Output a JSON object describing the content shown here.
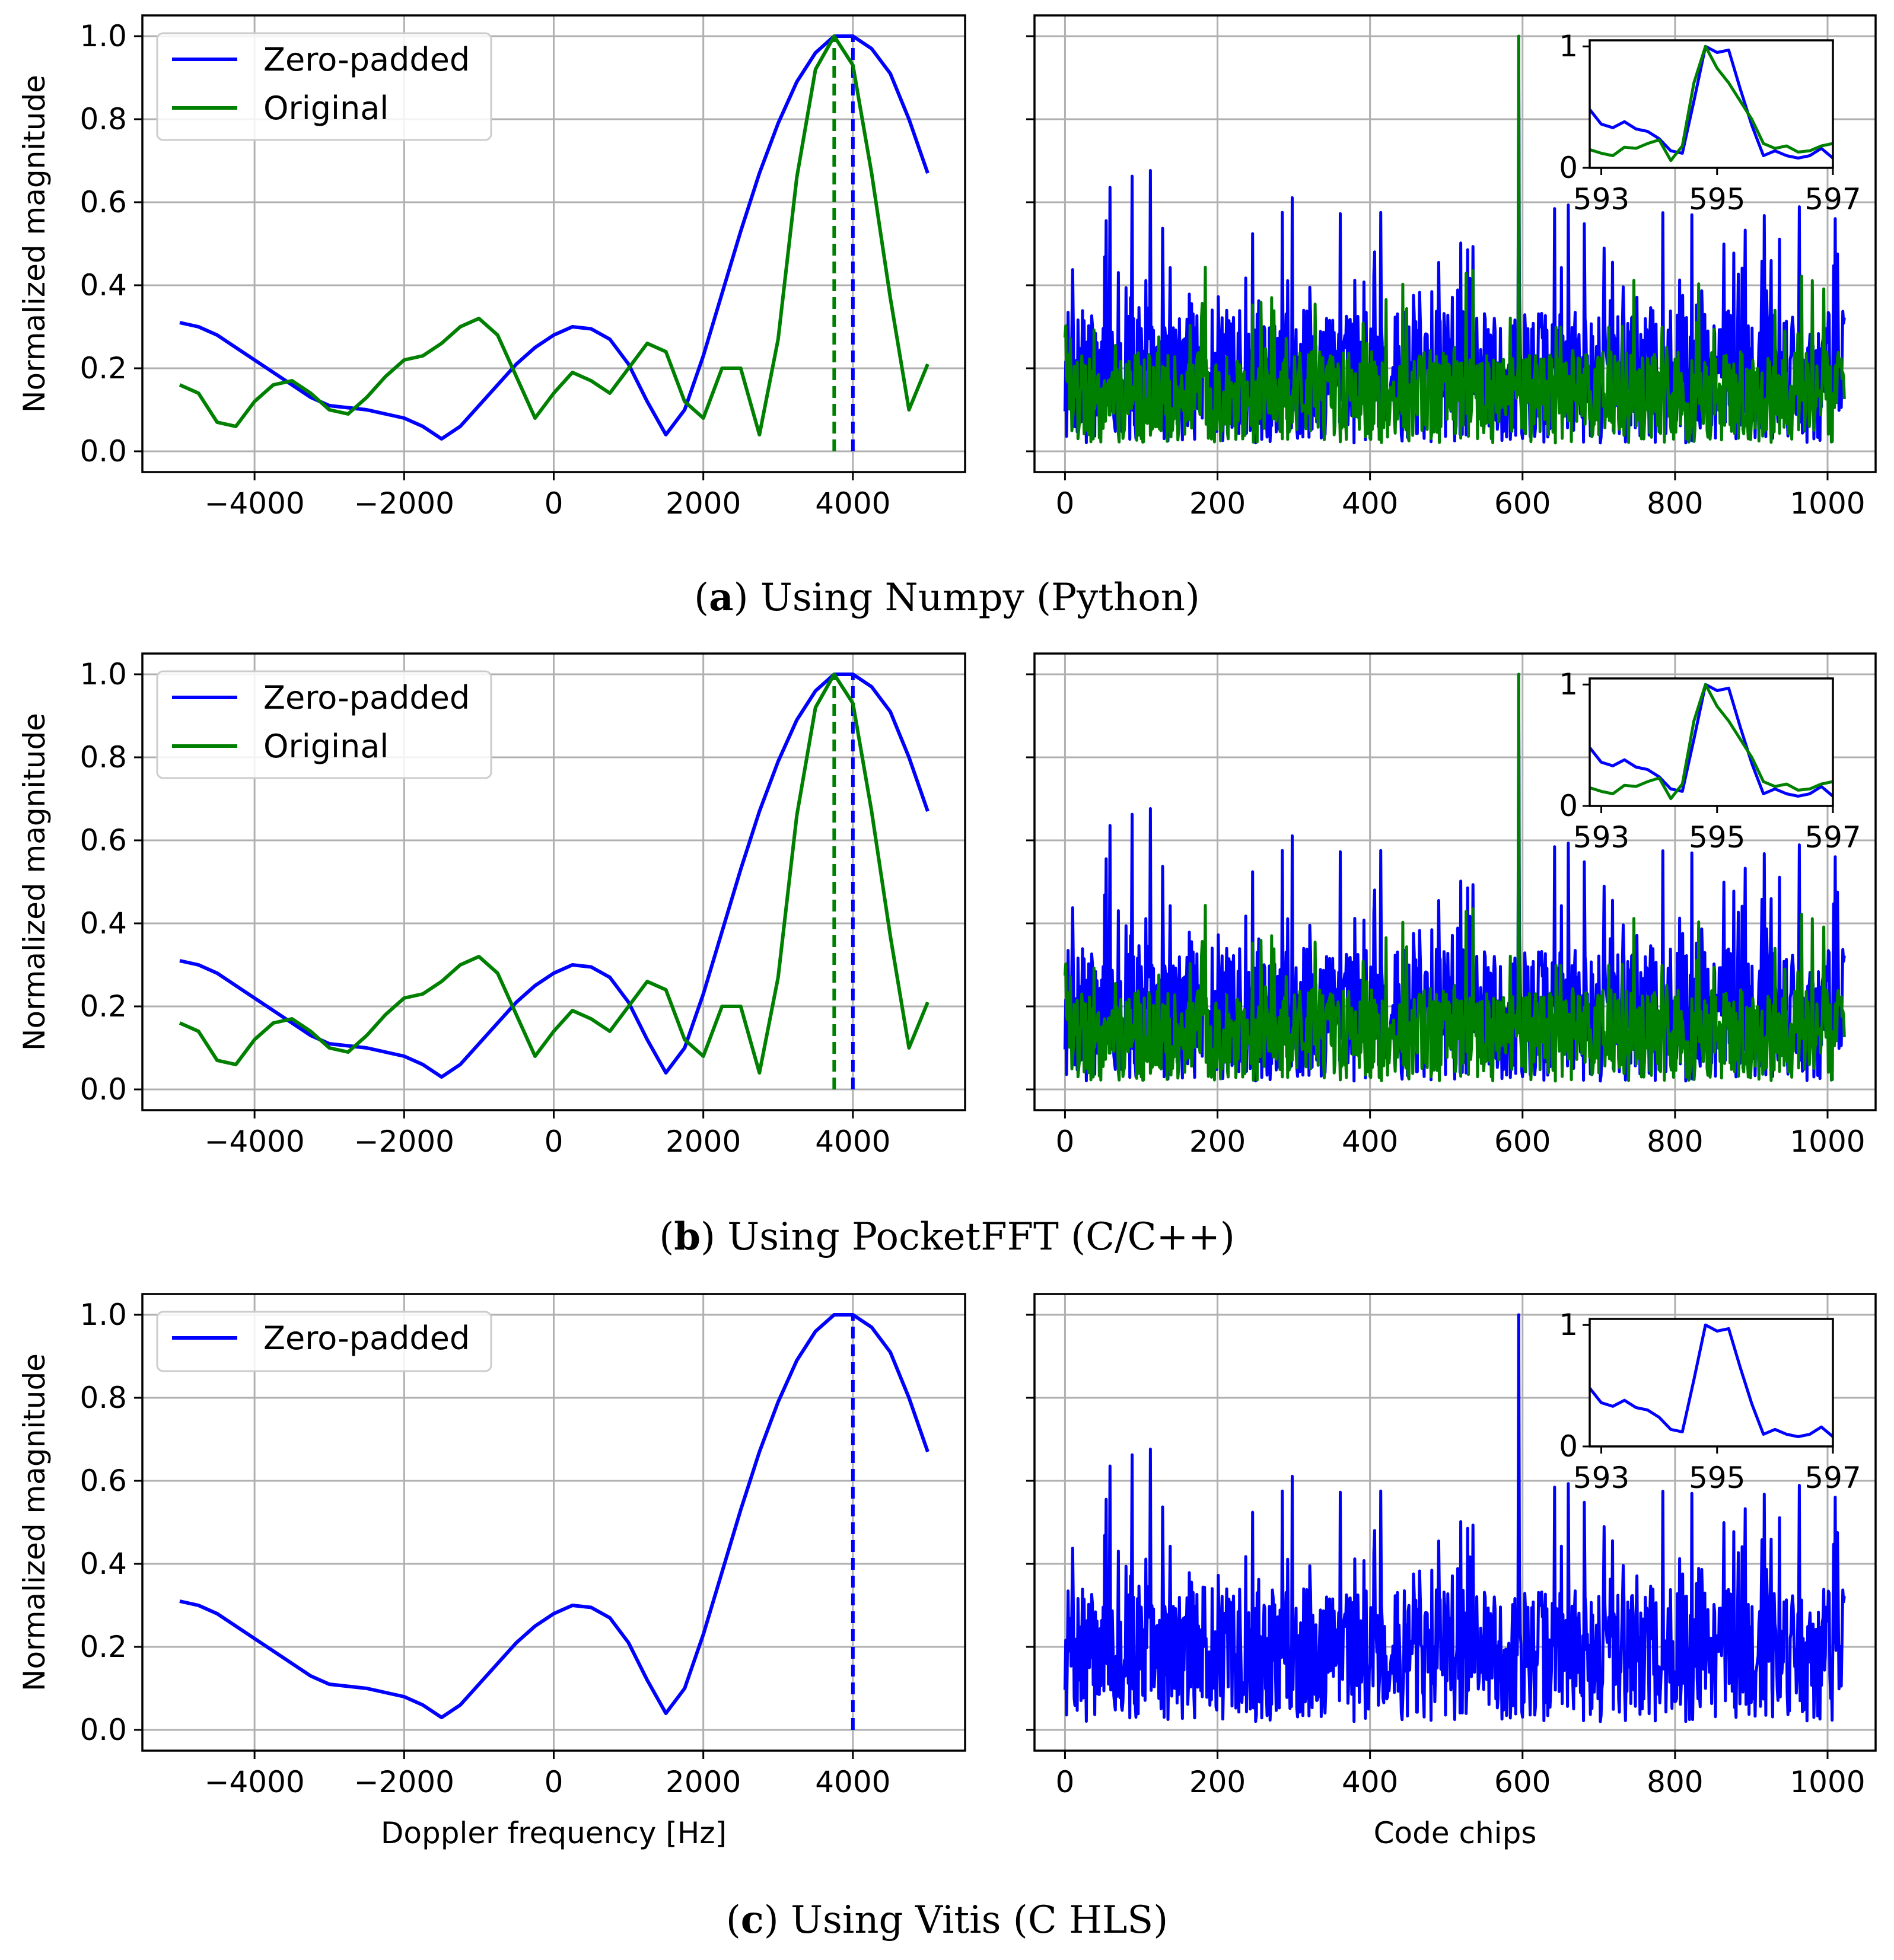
{
  "figure": {
    "captions": [
      {
        "letter": "a",
        "text": " Using Numpy (Python)"
      },
      {
        "letter": "b",
        "text": " Using PocketFFT (C/C++)"
      },
      {
        "letter": "c",
        "text": " Using Vitis (C HLS)"
      }
    ],
    "colors": {
      "zero_padded": "#0000ff",
      "original": "#008000",
      "grid": "#b0b0b0"
    }
  },
  "chart_data": {
    "type": "line",
    "shared_y": {
      "label": "Normalized magnitude",
      "ticks": [
        "0.0",
        "0.2",
        "0.4",
        "0.6",
        "0.8",
        "1.0"
      ],
      "ylim": [
        -0.05,
        1.05
      ]
    },
    "doppler": {
      "xlabel": "Doppler frequency [Hz]",
      "xlim": [
        -5500,
        5500
      ],
      "xticks": [
        -4000,
        -2000,
        0,
        2000,
        4000
      ],
      "xtick_labels": [
        "−4000",
        "−2000",
        "0",
        "2000",
        "4000"
      ],
      "zero_padded": {
        "name": "Zero-padded",
        "x": [
          -5000,
          -4750,
          -4500,
          -4250,
          -4000,
          -3750,
          -3500,
          -3250,
          -3000,
          -2750,
          -2500,
          -2250,
          -2000,
          -1750,
          -1500,
          -1250,
          -1000,
          -750,
          -500,
          -250,
          0,
          250,
          500,
          750,
          1000,
          1250,
          1500,
          1750,
          2000,
          2250,
          2500,
          2750,
          3000,
          3250,
          3500,
          3750,
          4000,
          4250,
          4500,
          4750,
          5000
        ],
        "y": [
          0.31,
          0.3,
          0.28,
          0.25,
          0.22,
          0.19,
          0.16,
          0.13,
          0.11,
          0.105,
          0.1,
          0.09,
          0.08,
          0.06,
          0.03,
          0.06,
          0.11,
          0.16,
          0.21,
          0.25,
          0.28,
          0.3,
          0.295,
          0.27,
          0.21,
          0.12,
          0.04,
          0.1,
          0.23,
          0.38,
          0.53,
          0.67,
          0.79,
          0.89,
          0.96,
          1.0,
          1.0,
          0.97,
          0.91,
          0.8,
          0.67
        ],
        "peak": 4000
      },
      "original": {
        "name": "Original",
        "x": [
          -5000,
          -4750,
          -4500,
          -4250,
          -4000,
          -3750,
          -3500,
          -3250,
          -3000,
          -2750,
          -2500,
          -2250,
          -2000,
          -1750,
          -1500,
          -1250,
          -1000,
          -750,
          -500,
          -250,
          0,
          250,
          500,
          750,
          1000,
          1250,
          1500,
          1750,
          2000,
          2250,
          2500,
          2750,
          3000,
          3250,
          3500,
          3750,
          4000,
          4250,
          4500,
          4750,
          5000
        ],
        "y": [
          0.16,
          0.14,
          0.07,
          0.06,
          0.12,
          0.16,
          0.17,
          0.14,
          0.1,
          0.09,
          0.13,
          0.18,
          0.22,
          0.23,
          0.26,
          0.3,
          0.32,
          0.28,
          0.18,
          0.08,
          0.14,
          0.19,
          0.17,
          0.14,
          0.2,
          0.26,
          0.24,
          0.12,
          0.08,
          0.2,
          0.2,
          0.04,
          0.27,
          0.66,
          0.92,
          1.0,
          0.93,
          0.67,
          0.37,
          0.1,
          0.21
        ],
        "peak": 3750
      }
    },
    "code": {
      "xlabel": "Code chips",
      "xlim": [
        -40,
        1063
      ],
      "xticks": [
        0,
        200,
        400,
        600,
        800,
        1000
      ],
      "xtick_labels": [
        "0",
        "200",
        "400",
        "600",
        "800",
        "1000"
      ],
      "n_points": 1023,
      "peak_index": 595,
      "inset": {
        "xlim": [
          592.8,
          597.0
        ],
        "xticks": [
          593,
          595,
          597
        ],
        "xtick_labels": [
          "593",
          "595",
          "597"
        ],
        "ytick_labels": [
          "0",
          "1"
        ],
        "zero_padded_y": [
          0.48,
          0.36,
          0.33,
          0.38,
          0.32,
          0.3,
          0.24,
          0.14,
          0.12,
          0.55,
          1.0,
          0.95,
          0.97,
          0.65,
          0.35,
          0.1,
          0.14,
          0.1,
          0.08,
          0.1,
          0.16,
          0.08
        ],
        "original_y": [
          0.15,
          0.12,
          0.1,
          0.17,
          0.16,
          0.2,
          0.23,
          0.06,
          0.18,
          0.7,
          1.0,
          0.82,
          0.7,
          0.55,
          0.4,
          0.2,
          0.16,
          0.18,
          0.13,
          0.14,
          0.18,
          0.2
        ]
      }
    },
    "panels": [
      {
        "id": "a",
        "series": [
          "zero_padded",
          "original"
        ],
        "legend": [
          "Zero-padded",
          "Original"
        ]
      },
      {
        "id": "b",
        "series": [
          "zero_padded",
          "original"
        ],
        "legend": [
          "Zero-padded",
          "Original"
        ]
      },
      {
        "id": "c",
        "series": [
          "zero_padded"
        ],
        "legend": [
          "Zero-padded"
        ]
      }
    ]
  }
}
